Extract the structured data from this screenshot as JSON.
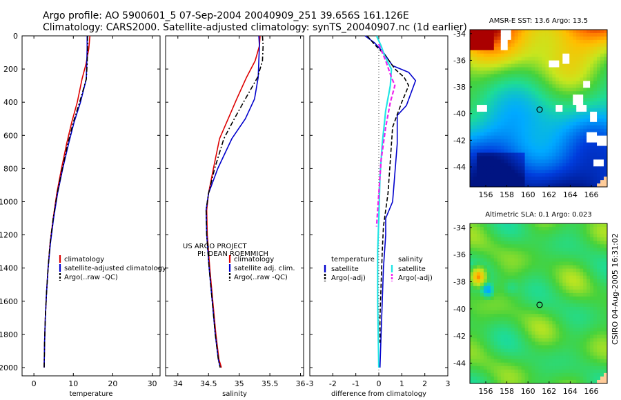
{
  "title": {
    "line1": "Argo profile: AO 5900601_5 07-Sep-2004 20040909_251 39.656S 161.126E",
    "line2": "Climatology: CARS2000. Satellite-adjusted climatology: synTS_20040907.nc (1d earlier)"
  },
  "stamp": "CSIRO 04-Aug-2005 16:31:02",
  "project_note": {
    "line1": "US ARGO PROJECT",
    "line2": "PI: DEAN ROEMMICH"
  },
  "colors": {
    "climatology": "#dd0000",
    "satellite": "#0000cc",
    "argo": "#000000",
    "cyan": "#22e5e5",
    "magenta": "#ee22ee"
  },
  "chart_data": [
    {
      "type": "line",
      "xlabel": "temperature",
      "ylim": [
        0,
        2050
      ],
      "y_inverted": true,
      "xlim": [
        -3,
        32
      ],
      "xticks": [
        "0",
        "10",
        "20",
        "30"
      ],
      "yticks": [
        "0",
        "200",
        "400",
        "600",
        "800",
        "1000",
        "1200",
        "1400",
        "1600",
        "1800",
        "2000"
      ],
      "legend": [
        "climatology",
        "satellite-adjusted climatology",
        "Argo(..raw -QC)"
      ],
      "series": [
        {
          "name": "climatology",
          "style": "solid",
          "color": "#dd0000",
          "x": [
            14.2,
            13.9,
            13.2,
            12.2,
            11.0,
            9.6,
            8.3,
            7.0,
            5.8,
            4.9,
            4.1,
            3.6,
            3.2,
            2.9,
            2.7,
            2.6
          ],
          "y": [
            0,
            80,
            170,
            260,
            400,
            520,
            650,
            800,
            950,
            1100,
            1250,
            1400,
            1550,
            1700,
            1850,
            2000
          ]
        },
        {
          "name": "satellite-adjusted climatology",
          "style": "solid",
          "color": "#0000cc",
          "x": [
            13.5,
            13.5,
            13.4,
            13.3,
            11.8,
            10.2,
            8.8,
            7.3,
            6.0,
            5.0,
            4.2,
            3.6,
            3.2,
            2.9,
            2.7,
            2.6
          ],
          "y": [
            0,
            80,
            170,
            260,
            400,
            520,
            650,
            800,
            950,
            1100,
            1250,
            1400,
            1550,
            1700,
            1850,
            2000
          ]
        },
        {
          "name": "Argo(..raw -QC)",
          "style": "dashdot",
          "color": "#000000",
          "x": [
            13.6,
            13.6,
            13.5,
            13.3,
            11.6,
            10.0,
            8.6,
            7.2,
            5.9,
            4.9,
            4.1,
            3.6,
            3.2,
            2.9,
            2.7,
            2.6
          ],
          "y": [
            0,
            80,
            170,
            260,
            400,
            520,
            650,
            800,
            950,
            1100,
            1250,
            1400,
            1550,
            1700,
            1850,
            2000
          ]
        }
      ]
    },
    {
      "type": "line",
      "xlabel": "salinity",
      "ylim": [
        0,
        2050
      ],
      "y_inverted": true,
      "xlim": [
        33.8,
        36.05
      ],
      "xticks": [
        "34",
        "34.5",
        "35",
        "35.5",
        "36"
      ],
      "legend": [
        "climatology",
        "satellite adj. clim.",
        "Argo(..raw -QC)"
      ],
      "series": [
        {
          "name": "climatology",
          "style": "solid",
          "color": "#dd0000",
          "x": [
            35.34,
            35.33,
            35.26,
            35.12,
            34.96,
            34.82,
            34.68,
            34.58,
            34.5,
            34.47,
            34.48,
            34.52,
            34.57,
            34.62,
            34.67,
            34.71
          ],
          "y": [
            0,
            60,
            150,
            250,
            380,
            500,
            620,
            800,
            950,
            1050,
            1200,
            1400,
            1600,
            1800,
            1950,
            2000
          ]
        },
        {
          "name": "satellite adj. clim.",
          "style": "solid",
          "color": "#0000cc",
          "x": [
            35.32,
            35.33,
            35.32,
            35.31,
            35.25,
            35.1,
            34.88,
            34.65,
            34.5,
            34.46,
            34.47,
            34.51,
            34.56,
            34.61,
            34.66,
            34.69
          ],
          "y": [
            0,
            60,
            150,
            250,
            380,
            500,
            620,
            800,
            950,
            1050,
            1200,
            1400,
            1600,
            1800,
            1950,
            2000
          ]
        },
        {
          "name": "Argo(..raw -QC)",
          "style": "dashdot",
          "color": "#000000",
          "x": [
            35.38,
            35.39,
            35.38,
            35.3,
            35.1,
            34.92,
            34.75,
            34.6,
            34.5,
            34.46,
            34.47,
            34.51,
            34.56,
            34.61,
            34.66,
            34.69
          ],
          "y": [
            0,
            60,
            150,
            250,
            380,
            500,
            620,
            800,
            950,
            1050,
            1200,
            1400,
            1600,
            1800,
            1950,
            2000
          ]
        }
      ]
    },
    {
      "type": "line",
      "xlabel": "difference from climatology",
      "ylim": [
        0,
        2050
      ],
      "y_inverted": true,
      "xlim": [
        -3,
        3
      ],
      "xticks": [
        "-3",
        "-2",
        "-1",
        "0",
        "1",
        "2",
        "3"
      ],
      "zero_line": true,
      "legend_left": {
        "heading": "temperature",
        "items": [
          "satellite",
          "Argo(-adj)"
        ]
      },
      "legend_right": {
        "heading": "salinity",
        "items": [
          "satellite",
          "Argo(-adj)"
        ]
      },
      "series": [
        {
          "name": "temperature satellite",
          "style": "solid",
          "color": "#0000cc",
          "x": [
            -0.6,
            -0.2,
            0.2,
            0.6,
            1.3,
            1.6,
            1.2,
            0.8,
            0.8,
            0.6,
            0.3,
            0.3,
            0.2,
            0.15,
            0.1,
            0.05
          ],
          "y": [
            0,
            40,
            100,
            180,
            220,
            270,
            420,
            480,
            650,
            1000,
            1100,
            1200,
            1400,
            1600,
            1800,
            2000
          ]
        },
        {
          "name": "temperature Argo(-adj)",
          "style": "dashed",
          "color": "#000000",
          "x": [
            -0.5,
            -0.2,
            0.3,
            0.7,
            1.1,
            1.3,
            1.0,
            0.6,
            0.5,
            0.4,
            0.2,
            0.15,
            0.1,
            0.05,
            0.05
          ],
          "y": [
            0,
            50,
            120,
            200,
            250,
            300,
            400,
            550,
            750,
            950,
            1150,
            1300,
            1500,
            1700,
            1850
          ]
        },
        {
          "name": "salinity satellite",
          "style": "solid",
          "color": "#22e5e5",
          "x": [
            -0.1,
            0.1,
            0.25,
            0.55,
            0.5,
            0.3,
            0.15,
            0.05,
            0.0,
            -0.05,
            -0.05,
            0.0
          ],
          "y": [
            0,
            60,
            120,
            200,
            300,
            450,
            650,
            850,
            1100,
            1300,
            1600,
            2000
          ]
        },
        {
          "name": "salinity Argo(-adj)",
          "style": "dashed",
          "color": "#ee22ee",
          "x": [
            0.0,
            0.3,
            0.55,
            0.7,
            0.5,
            0.3,
            0.1,
            0.0,
            -0.1
          ],
          "y": [
            50,
            150,
            250,
            300,
            400,
            550,
            750,
            950,
            1150
          ]
        }
      ]
    },
    {
      "type": "heatmap",
      "title": "AMSR-E SST: 13.6 Argo: 13.5",
      "xticks": [
        "156",
        "158",
        "160",
        "162",
        "164",
        "166"
      ],
      "yticks": [
        "-34",
        "-36",
        "-38",
        "-40",
        "-42",
        "-44"
      ],
      "xlim": [
        154.5,
        167.5
      ],
      "ylim": [
        -45.5,
        -33.7
      ],
      "marker": [
        161.1,
        -39.7
      ]
    },
    {
      "type": "heatmap",
      "title": "Altimetric SLA: 0.1 Argo: 0.023",
      "xticks": [
        "156",
        "158",
        "160",
        "162",
        "164",
        "166"
      ],
      "yticks": [
        "-34",
        "-36",
        "-38",
        "-40",
        "-42",
        "-44"
      ],
      "xlim": [
        154.5,
        167.5
      ],
      "ylim": [
        -45.5,
        -33.7
      ],
      "marker": [
        161.1,
        -39.7
      ]
    }
  ]
}
